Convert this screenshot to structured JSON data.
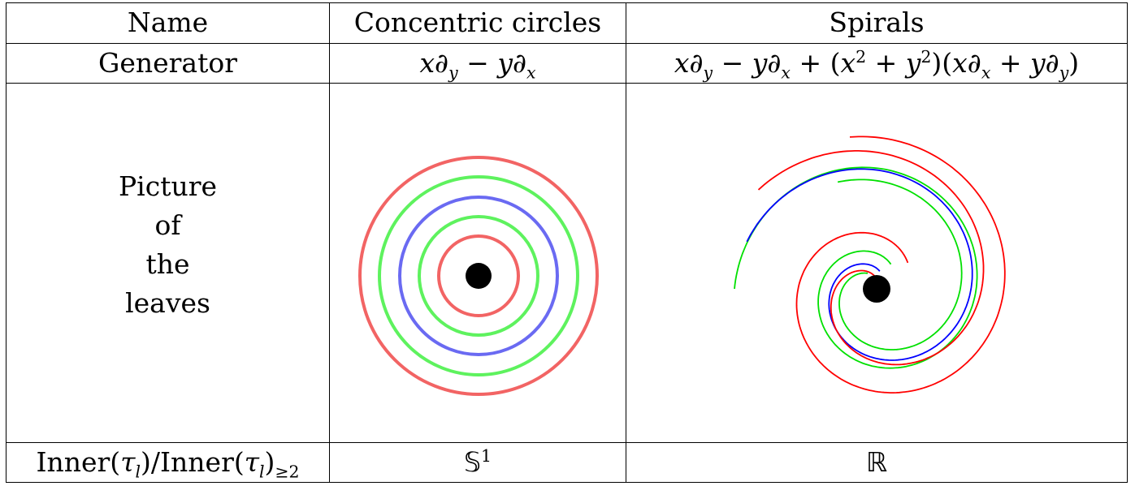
{
  "rows": {
    "name": {
      "label": "Name",
      "concentric": "Concentric circles",
      "spirals": "Spirals"
    },
    "generator": {
      "label": "Generator"
    },
    "picture": {
      "label_lines": [
        "Picture",
        "of",
        "the",
        "leaves"
      ]
    },
    "inner": {
      "concentric_set": "𝕊",
      "concentric_sup": "1",
      "spirals_set": "ℝ"
    }
  },
  "colors": {
    "red": "#f26464",
    "green": "#5ef25e",
    "blue": "#6a6af2",
    "spiral_red": "#ff0000",
    "spiral_green": "#00e000",
    "spiral_blue": "#0000ff",
    "dot": "#000000"
  }
}
